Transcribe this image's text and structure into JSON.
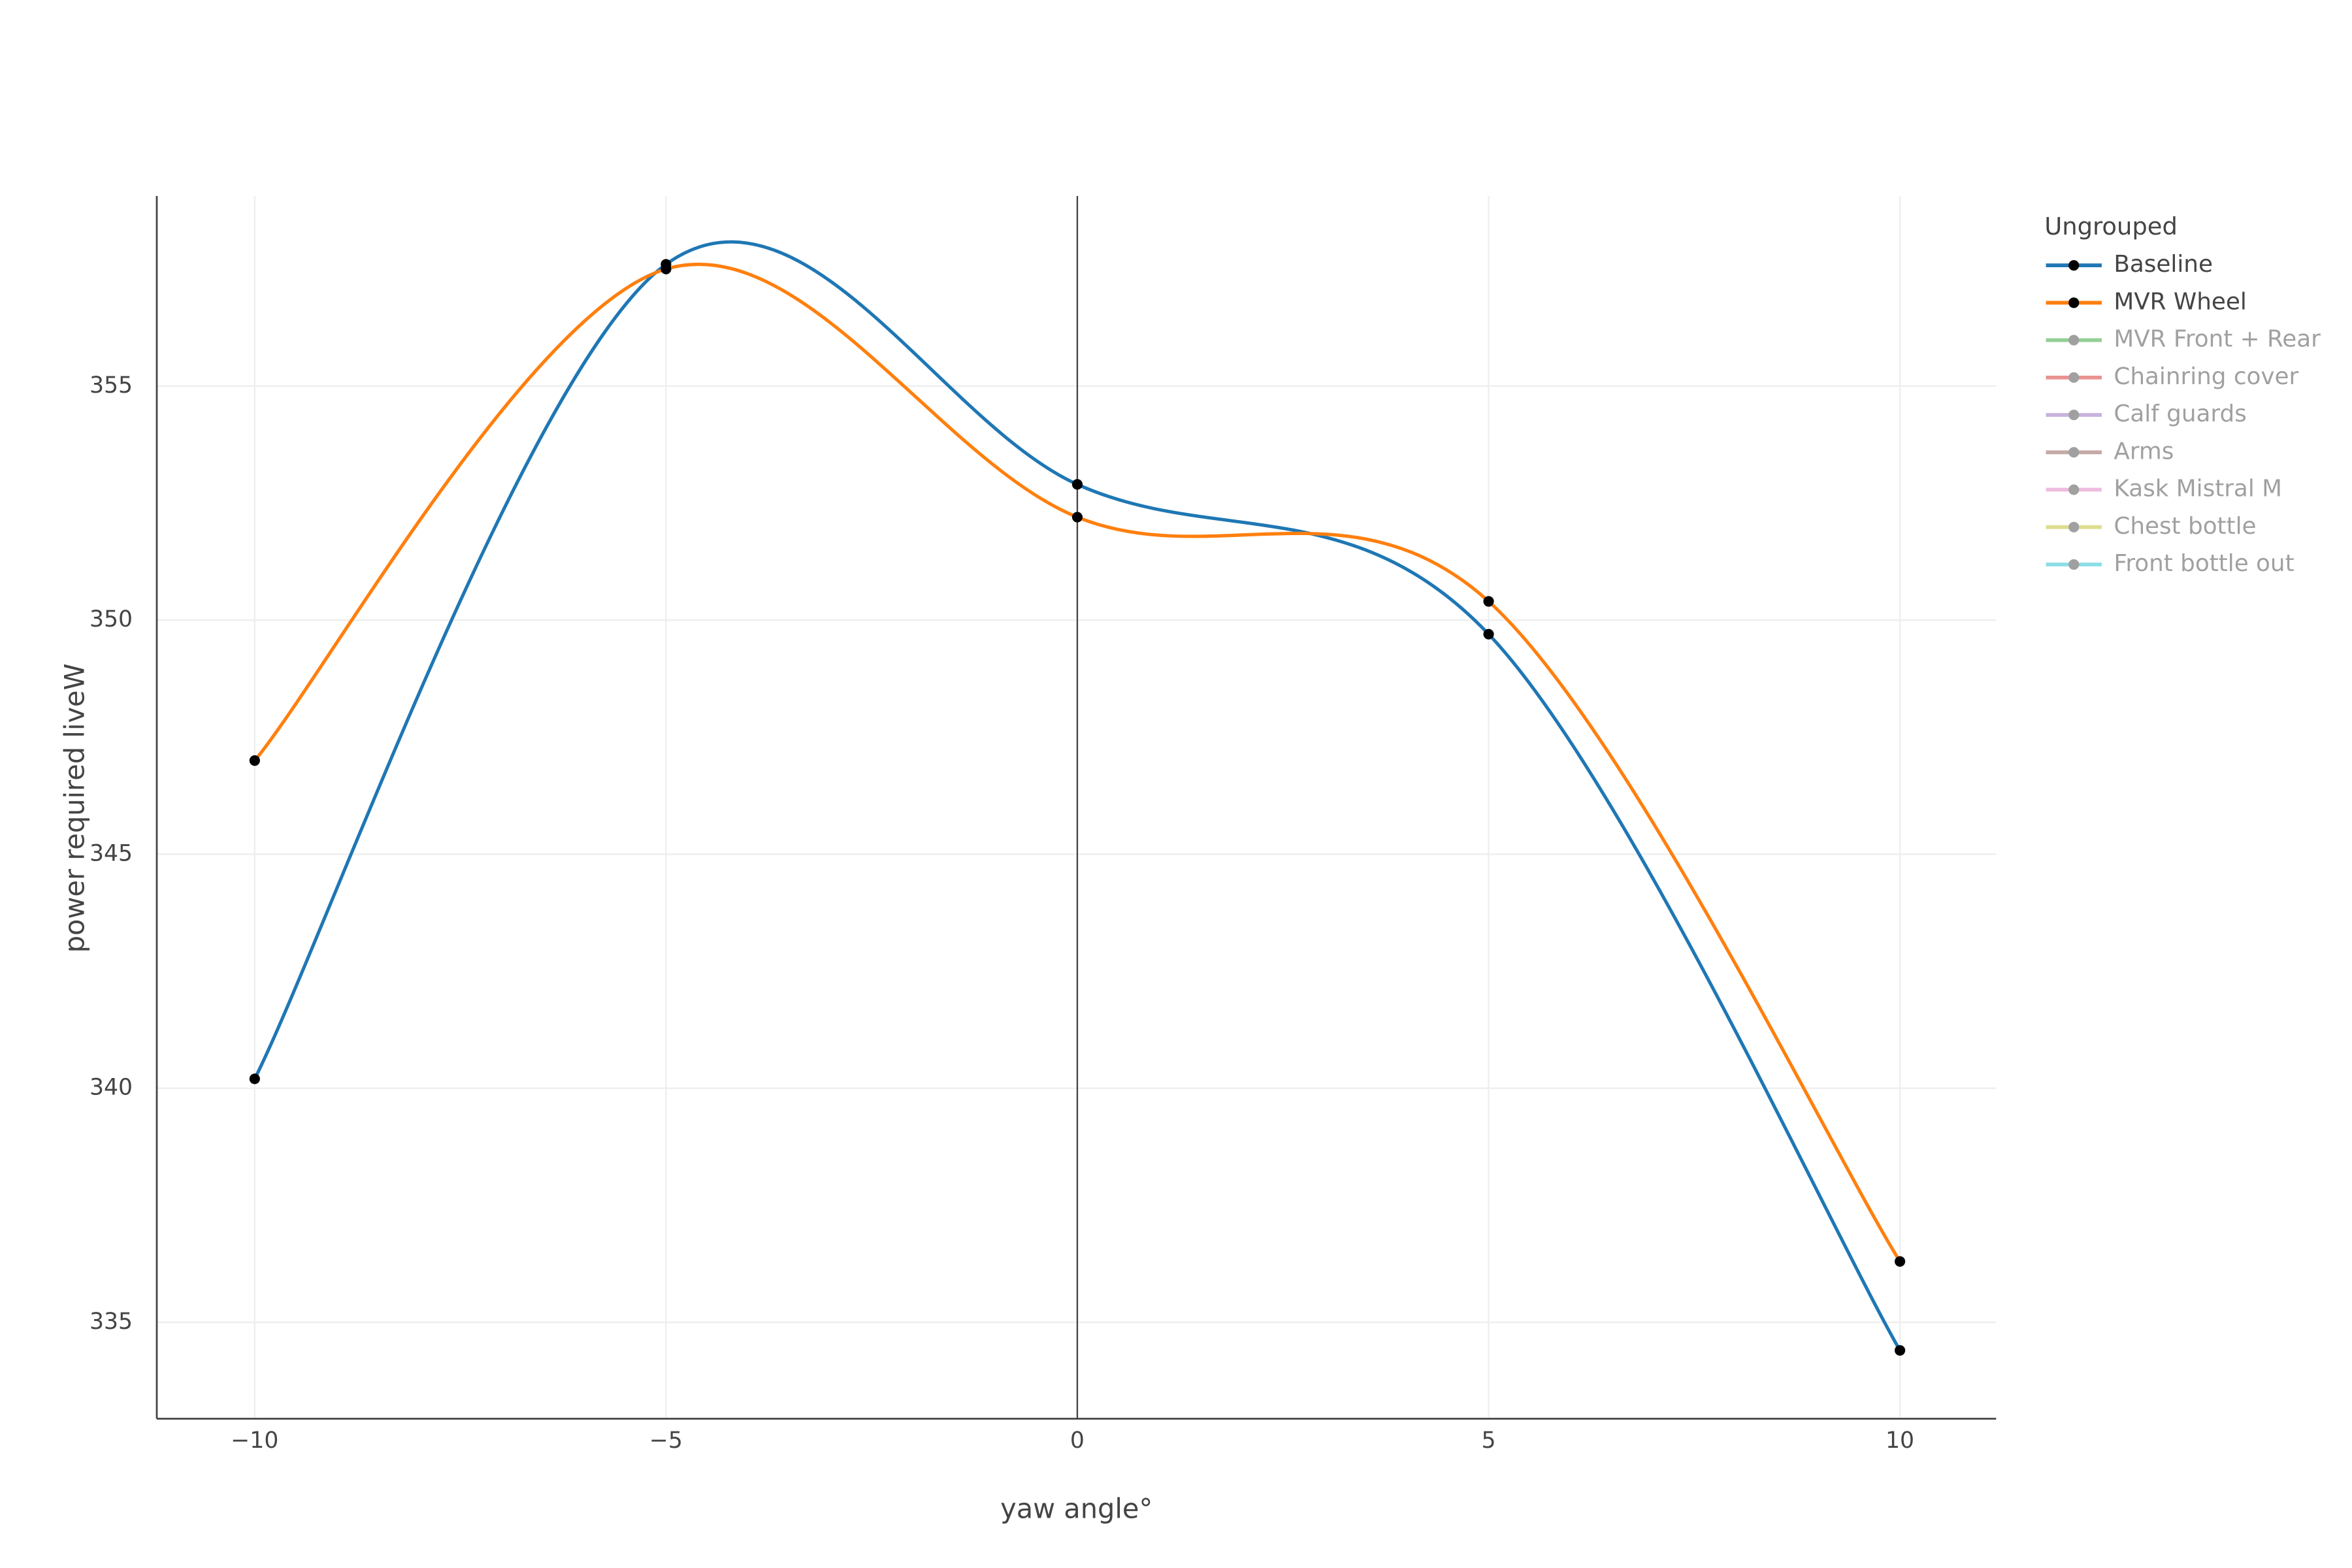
{
  "chart_data": {
    "type": "line",
    "x_label": "yaw angle°",
    "y_label": "power required liveW",
    "x": [
      -10,
      -5,
      0,
      5,
      10
    ],
    "series": [
      {
        "name": "Baseline",
        "color": "#1f77b4",
        "values": [
          340.2,
          357.6,
          352.9,
          349.7,
          334.4
        ]
      },
      {
        "name": "MVR Wheel",
        "color": "#ff7f0e",
        "values": [
          347.0,
          357.5,
          352.2,
          350.4,
          336.3
        ]
      },
      {
        "name": "MVR Front + Rear",
        "color": "#2ca02c",
        "visible": false
      },
      {
        "name": "Chainring cover",
        "color": "#d62728",
        "visible": false
      },
      {
        "name": "Calf guards",
        "color": "#9467bd",
        "visible": false
      },
      {
        "name": "Arms",
        "color": "#8c564b",
        "visible": false
      },
      {
        "name": "Kask Mistral M",
        "color": "#e377c2",
        "visible": false
      },
      {
        "name": "Chest bottle",
        "color": "#bcbd22",
        "visible": false
      },
      {
        "name": "Front bottle out",
        "color": "#17becf",
        "visible": false
      }
    ],
    "legend_title": "Ungrouped",
    "xlim": [
      -11.19,
      11.17
    ],
    "xticks": [
      {
        "value": -10,
        "label": "−10"
      },
      {
        "value": -5,
        "label": "−5"
      },
      0,
      5,
      10
    ],
    "ylim": [
      332.94,
      359.06
    ],
    "yticks": [
      335,
      340,
      345,
      350,
      355
    ],
    "grid": true,
    "smooth": true,
    "marker_color": "#000000"
  }
}
